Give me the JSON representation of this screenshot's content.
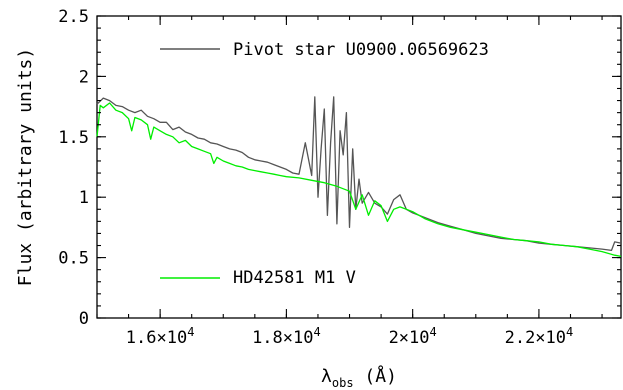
{
  "chart_data": {
    "type": "line",
    "title": "",
    "xlabel": {
      "symbol": "λ",
      "subscript": "obs",
      "unit": "(Å)"
    },
    "ylabel": "Flux (arbitrary units)",
    "xlim": [
      15000,
      23300
    ],
    "ylim": [
      0,
      2.5
    ],
    "xticks": [
      {
        "value": 16000,
        "mantissa": "1.6×10",
        "exp": "4"
      },
      {
        "value": 18000,
        "mantissa": "1.8×10",
        "exp": "4"
      },
      {
        "value": 20000,
        "mantissa": "2×10",
        "exp": "4"
      },
      {
        "value": 22000,
        "mantissa": "2.2×10",
        "exp": "4"
      }
    ],
    "yticks": [
      {
        "value": 0,
        "label": "0"
      },
      {
        "value": 0.5,
        "label": "0.5"
      },
      {
        "value": 1,
        "label": "1"
      },
      {
        "value": 1.5,
        "label": "1.5"
      },
      {
        "value": 2,
        "label": "2"
      },
      {
        "value": 2.5,
        "label": "2.5"
      }
    ],
    "grid": false,
    "legend_placement": "inside, top-left and bottom-left",
    "series": [
      {
        "name": "Pivot star U0900.06569623",
        "color": "#555555",
        "x": [
          15000,
          15100,
          15200,
          15300,
          15400,
          15500,
          15600,
          15700,
          15800,
          15900,
          16000,
          16100,
          16200,
          16300,
          16400,
          16500,
          16600,
          16700,
          16800,
          16900,
          17000,
          17100,
          17200,
          17300,
          17400,
          17500,
          17600,
          17700,
          17800,
          17900,
          18000,
          18100,
          18200,
          18300,
          18400,
          18450,
          18500,
          18550,
          18600,
          18650,
          18700,
          18750,
          18800,
          18850,
          18900,
          18950,
          19000,
          19050,
          19100,
          19150,
          19200,
          19300,
          19400,
          19500,
          19600,
          19700,
          19800,
          19900,
          20000,
          20200,
          20400,
          20600,
          20800,
          21000,
          21200,
          21400,
          21600,
          21800,
          22000,
          22200,
          22400,
          22600,
          22800,
          23000,
          23150,
          23200,
          23300
        ],
        "values": [
          1.77,
          1.82,
          1.8,
          1.76,
          1.75,
          1.72,
          1.7,
          1.72,
          1.67,
          1.65,
          1.62,
          1.62,
          1.56,
          1.58,
          1.54,
          1.52,
          1.49,
          1.48,
          1.45,
          1.44,
          1.42,
          1.4,
          1.39,
          1.37,
          1.33,
          1.31,
          1.3,
          1.29,
          1.27,
          1.25,
          1.23,
          1.2,
          1.19,
          1.45,
          1.18,
          1.83,
          1.0,
          1.4,
          1.73,
          0.85,
          1.45,
          1.83,
          0.78,
          1.55,
          1.35,
          1.7,
          0.75,
          1.4,
          0.9,
          1.15,
          0.95,
          1.04,
          0.95,
          0.92,
          0.86,
          0.98,
          1.02,
          0.9,
          0.87,
          0.83,
          0.79,
          0.76,
          0.73,
          0.7,
          0.68,
          0.66,
          0.65,
          0.64,
          0.62,
          0.61,
          0.6,
          0.59,
          0.58,
          0.57,
          0.56,
          0.63,
          0.62
        ]
      },
      {
        "name": "HD42581 M1 V",
        "color": "#00ee00",
        "x": [
          15000,
          15050,
          15100,
          15200,
          15300,
          15400,
          15500,
          15550,
          15600,
          15700,
          15800,
          15850,
          15900,
          16000,
          16100,
          16200,
          16300,
          16400,
          16500,
          16600,
          16700,
          16800,
          16850,
          16900,
          17000,
          17100,
          17200,
          17300,
          17400,
          17500,
          17600,
          17700,
          17800,
          17900,
          18000,
          18200,
          18400,
          18600,
          18800,
          19000,
          19100,
          19200,
          19300,
          19400,
          19500,
          19600,
          19700,
          19800,
          20000,
          20200,
          20400,
          20600,
          20800,
          21000,
          21200,
          21400,
          21600,
          21800,
          22000,
          22200,
          22400,
          22600,
          22800,
          23000,
          23200,
          23300
        ],
        "values": [
          1.5,
          1.76,
          1.74,
          1.78,
          1.72,
          1.7,
          1.65,
          1.55,
          1.66,
          1.64,
          1.6,
          1.48,
          1.58,
          1.55,
          1.52,
          1.5,
          1.45,
          1.47,
          1.42,
          1.4,
          1.38,
          1.36,
          1.28,
          1.33,
          1.3,
          1.28,
          1.26,
          1.25,
          1.23,
          1.22,
          1.21,
          1.2,
          1.19,
          1.18,
          1.17,
          1.16,
          1.14,
          1.12,
          1.09,
          1.05,
          0.9,
          1.02,
          0.85,
          0.97,
          0.93,
          0.8,
          0.9,
          0.92,
          0.88,
          0.82,
          0.78,
          0.75,
          0.73,
          0.71,
          0.69,
          0.67,
          0.65,
          0.64,
          0.63,
          0.61,
          0.6,
          0.59,
          0.57,
          0.55,
          0.52,
          0.51
        ]
      }
    ]
  }
}
